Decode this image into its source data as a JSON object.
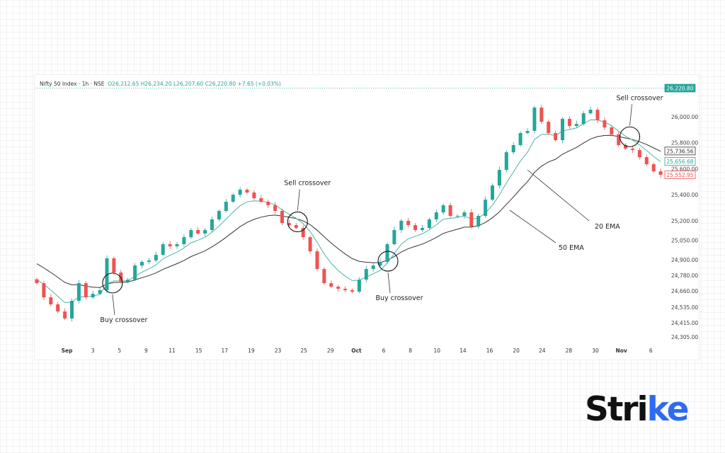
{
  "chart_data": {
    "type": "candlestick",
    "title": "Nifty 50 Index · 1h · NSE",
    "ohlc_legend": {
      "o": "O26,212.65",
      "h": "H26,234.20",
      "l": "L26,207.60",
      "c": "C26,220.80",
      "change": "+7.65 (+0.03%)"
    },
    "close": [
      24719,
      24610,
      24556,
      24501,
      24447,
      24583,
      24719,
      24610,
      24637,
      24665,
      24910,
      24801,
      24730,
      24746,
      24855,
      24883,
      24894,
      24937,
      25019,
      25003,
      25019,
      25073,
      25128,
      25101,
      25128,
      25210,
      25275,
      25346,
      25400,
      25439,
      25417,
      25373,
      25346,
      25319,
      25275,
      25182,
      25166,
      25144,
      25073,
      24964,
      24828,
      24719,
      24692,
      24676,
      24665,
      24654,
      24746,
      24828,
      24855,
      24883,
      25019,
      25128,
      25199,
      25166,
      25128,
      25144,
      25210,
      25264,
      25319,
      25237,
      25237,
      25264,
      25155,
      25237,
      25362,
      25471,
      25591,
      25727,
      25782,
      25875,
      25891,
      26071,
      25962,
      25875,
      25820,
      25984,
      25929,
      25945,
      26027,
      26054,
      25973,
      25918,
      25864,
      25782,
      25755,
      25744,
      25689,
      25635,
      25580,
      25553
    ],
    "ylim": [
      24250,
      26260
    ],
    "yticks": [
      "26,000.00",
      "25,800.00",
      "25,600.00",
      "25,400.00",
      "25,200.00",
      "25,050.00",
      "24,900.00",
      "24,780.00",
      "24,660.00",
      "24,535.00",
      "24,415.00",
      "24,305.00"
    ],
    "ytick_values": [
      26000,
      25800,
      25600,
      25400,
      25200,
      25050,
      24900,
      24780,
      24660,
      24535,
      24415,
      24305
    ],
    "xticks": [
      {
        "label": "Sep",
        "i": 4.3
      },
      {
        "label": "3",
        "i": 8
      },
      {
        "label": "5",
        "i": 11.8
      },
      {
        "label": "9",
        "i": 15.6
      },
      {
        "label": "11",
        "i": 19.3
      },
      {
        "label": "15",
        "i": 23.1
      },
      {
        "label": "17",
        "i": 26.8
      },
      {
        "label": "19",
        "i": 30.6
      },
      {
        "label": "23",
        "i": 34.4
      },
      {
        "label": "25",
        "i": 38.1
      },
      {
        "label": "29",
        "i": 41.9
      },
      {
        "label": "Oct",
        "i": 45.6
      },
      {
        "label": "6",
        "i": 49.5
      },
      {
        "label": "8",
        "i": 53.3
      },
      {
        "label": "10",
        "i": 57.1
      },
      {
        "label": "14",
        "i": 60.8
      },
      {
        "label": "16",
        "i": 64.6
      },
      {
        "label": "20",
        "i": 68.4
      },
      {
        "label": "24",
        "i": 72.1
      },
      {
        "label": "28",
        "i": 75.9
      },
      {
        "label": "30",
        "i": 79.7
      },
      {
        "label": "Nov",
        "i": 83.4
      },
      {
        "label": "6",
        "i": 87.6
      }
    ],
    "price_labels": [
      {
        "text": "26,220.80",
        "value": 26220.8,
        "color": "#26a69a",
        "style": "filled"
      },
      {
        "text": "25,736.56",
        "value": 25736.56,
        "color": "#333333",
        "style": "outline"
      },
      {
        "text": "25,656.68",
        "value": 25656.68,
        "color": "#26a69a",
        "style": "outline"
      },
      {
        "text": "25,552.95",
        "value": 25552.95,
        "color": "#ef5350",
        "style": "outline"
      }
    ],
    "series": [
      {
        "name": "20 EMA",
        "color": "#4fb3a9"
      },
      {
        "name": "50 EMA",
        "color": "#333333"
      }
    ],
    "annotations": [
      {
        "text": "Buy crossover",
        "i": 10.8,
        "price": 24720
      },
      {
        "text": "Sell crossover",
        "i": 37.2,
        "price": 25191
      },
      {
        "text": "Buy crossover",
        "i": 50.1,
        "price": 24888
      },
      {
        "text": "Sell crossover",
        "i": 84.6,
        "price": 25846
      }
    ],
    "ema_labels": [
      {
        "text": "20 EMA"
      },
      {
        "text": "50 EMA"
      }
    ],
    "colors": {
      "up": "#26a69a",
      "down": "#ef5350"
    }
  },
  "brand": {
    "logo": "Strike"
  }
}
